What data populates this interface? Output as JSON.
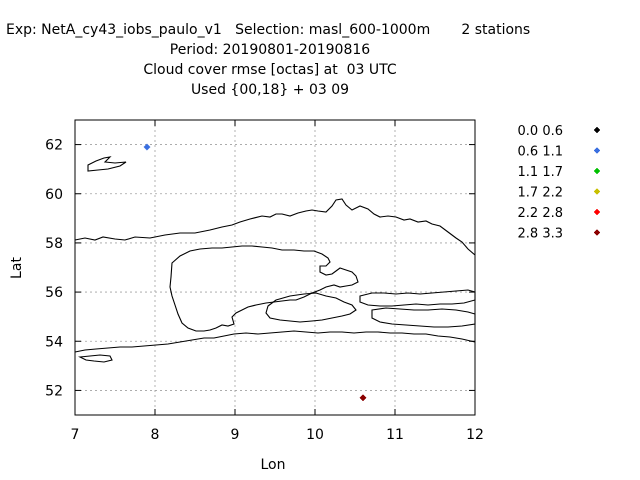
{
  "header": {
    "line1": "Exp: NetA_cy43_iobs_paulo_v1   Selection: masl_600-1000m       2 stations",
    "line2": "Period: 20190801-20190816",
    "line3": "Cloud cover rmse [octas] at  03 UTC",
    "line4": "Used {00,18} + 03 09"
  },
  "chart_data": {
    "type": "scatter",
    "xlabel": "Lon",
    "ylabel": "Lat",
    "xlim": [
      7,
      12
    ],
    "ylim": [
      51,
      63
    ],
    "xticks": [
      7,
      8,
      9,
      10,
      11,
      12
    ],
    "yticks": [
      52,
      54,
      56,
      58,
      60,
      62
    ],
    "grid": true,
    "legend_position": "right",
    "bins": [
      {
        "label": "0.0 0.6",
        "color": "#000000"
      },
      {
        "label": "0.6 1.1",
        "color": "#3a6fe0"
      },
      {
        "label": "1.1 1.7",
        "color": "#00c000"
      },
      {
        "label": "1.7 2.2",
        "color": "#c8c000"
      },
      {
        "label": "2.2 2.8",
        "color": "#ff0000"
      },
      {
        "label": "2.8 3.3",
        "color": "#8b0000"
      }
    ],
    "points": [
      {
        "lon": 7.9,
        "lat": 61.9,
        "bin": 1
      },
      {
        "lon": 10.6,
        "lat": 51.7,
        "bin": 5
      }
    ]
  }
}
